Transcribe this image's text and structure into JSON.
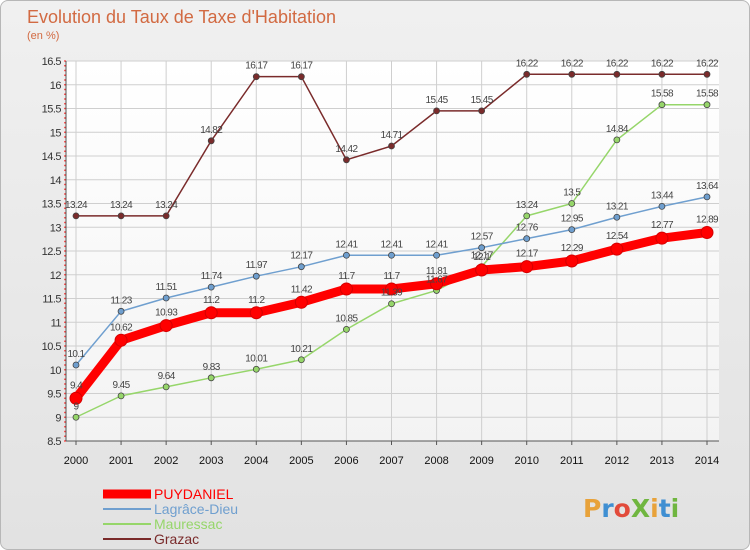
{
  "title": "Evolution du Taux de Taxe d'Habitation",
  "subtitle": "(en %)",
  "logo": {
    "text": "ProXiti",
    "colors": [
      "#e8a23a",
      "#3f8fd2",
      "#e24b3b",
      "#70b640",
      "#e8a23a",
      "#3f8fd2",
      "#70b640"
    ]
  },
  "chart_data": {
    "type": "line",
    "title": "Evolution du Taux de Taxe d'Habitation",
    "ylabel": "(en %)",
    "xlabel": "",
    "ylim": [
      8.5,
      16.5
    ],
    "yticks": [
      "8.5",
      "9",
      "9.5",
      "10",
      "10.5",
      "11",
      "11.5",
      "12",
      "12.5",
      "13",
      "13.5",
      "14",
      "14.5",
      "15",
      "15.5",
      "16",
      "16.5"
    ],
    "x": [
      "2000",
      "2001",
      "2002",
      "2003",
      "2004",
      "2005",
      "2006",
      "2007",
      "2008",
      "2009",
      "2010",
      "2011",
      "2012",
      "2013",
      "2014"
    ],
    "grid": true,
    "legend_position": "bottom-left",
    "series": [
      {
        "name": "Grazac",
        "color": "#7a2b2b",
        "values": [
          13.24,
          13.24,
          13.24,
          14.82,
          16.17,
          16.17,
          14.42,
          14.71,
          15.45,
          15.45,
          16.22,
          16.22,
          16.22,
          16.22,
          16.22
        ],
        "labels": [
          "13.24",
          "13.24",
          "13.24",
          "14.82",
          "16.17",
          "16.17",
          "14.42",
          "14.71",
          "15.45",
          "15.45",
          "16.22",
          "16.22",
          "16.22",
          "16.22",
          "16.22"
        ]
      },
      {
        "name": "Mauressac",
        "color": "#96d66a",
        "values": [
          9,
          9.45,
          9.64,
          9.83,
          10.01,
          10.21,
          10.85,
          11.39,
          11.67,
          12.17,
          13.24,
          13.5,
          14.84,
          15.58,
          15.58
        ],
        "labels": [
          "9",
          "9.45",
          "9.64",
          "9.83",
          "10.01",
          "10.21",
          "10.85",
          "11.39",
          "11.67",
          "12.17",
          "13.24",
          "13.5",
          "14.84",
          "15.58",
          "15.58"
        ]
      },
      {
        "name": "Lagrâce-Dieu",
        "color": "#6f9fcf",
        "values": [
          10.1,
          11.23,
          11.51,
          11.74,
          11.97,
          12.17,
          12.41,
          12.41,
          12.41,
          12.57,
          12.76,
          12.95,
          13.21,
          13.44,
          13.64
        ],
        "labels": [
          "10.1",
          "11.23",
          "11.51",
          "11.74",
          "11.97",
          "12.17",
          "12.41",
          "12.41",
          "12.41",
          "12.57",
          "12.76",
          "12.95",
          "13.21",
          "13.44",
          "13.64"
        ]
      },
      {
        "name": "PUYDANIEL",
        "color": "#ff0000",
        "values": [
          9.4,
          10.62,
          10.93,
          11.2,
          11.2,
          11.42,
          11.7,
          11.7,
          11.81,
          12.1,
          12.17,
          12.29,
          12.54,
          12.77,
          12.89
        ],
        "labels": [
          "9.4",
          "10.62",
          "10.93",
          "11.2",
          "11.2",
          "11.42",
          "11.7",
          "11.7",
          "11.81",
          "12.1",
          "12.17",
          "12.29",
          "12.54",
          "12.77",
          "12.89"
        ]
      }
    ],
    "legend": [
      {
        "name": "PUYDANIEL",
        "color": "#ff0000"
      },
      {
        "name": "Lagrâce-Dieu",
        "color": "#6f9fcf"
      },
      {
        "name": "Mauressac",
        "color": "#96d66a"
      },
      {
        "name": "Grazac",
        "color": "#7a2b2b"
      }
    ]
  }
}
